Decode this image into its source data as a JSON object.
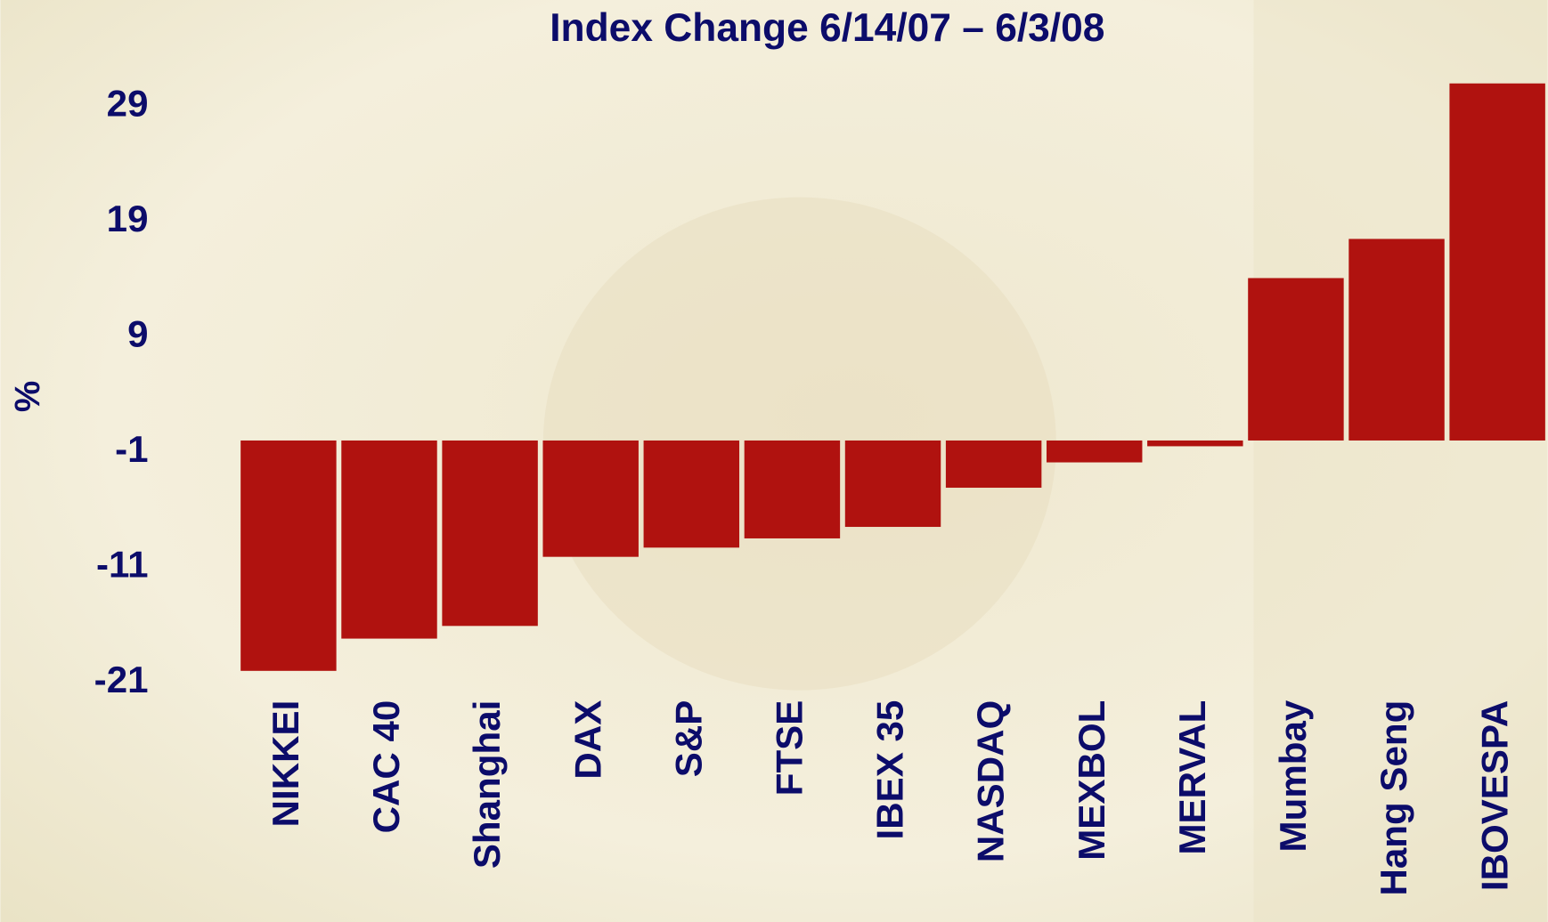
{
  "chart_data": {
    "type": "bar",
    "title": "Index Change 6/14/07 – 6/3/08",
    "y_label": "%",
    "categories": [
      "NIKKEI",
      "CAC 40",
      "Shanghai",
      "DAX",
      "S&P",
      "FTSE",
      "IBEX 35",
      "NASDAQ",
      "MEXBOL",
      "MERVAL",
      "Mumbay",
      "Hang Seng",
      "IBOVESPA"
    ],
    "values": [
      -20.0,
      -17.2,
      -16.1,
      -10.1,
      -9.3,
      -8.5,
      -7.5,
      -4.1,
      -1.9,
      -0.5,
      14.1,
      17.5,
      31.0
    ],
    "color": "#b0120f",
    "ylim": [
      -21,
      31
    ],
    "yticks": [
      -21,
      -11,
      -1,
      9,
      19,
      29
    ],
    "grid": false
  }
}
